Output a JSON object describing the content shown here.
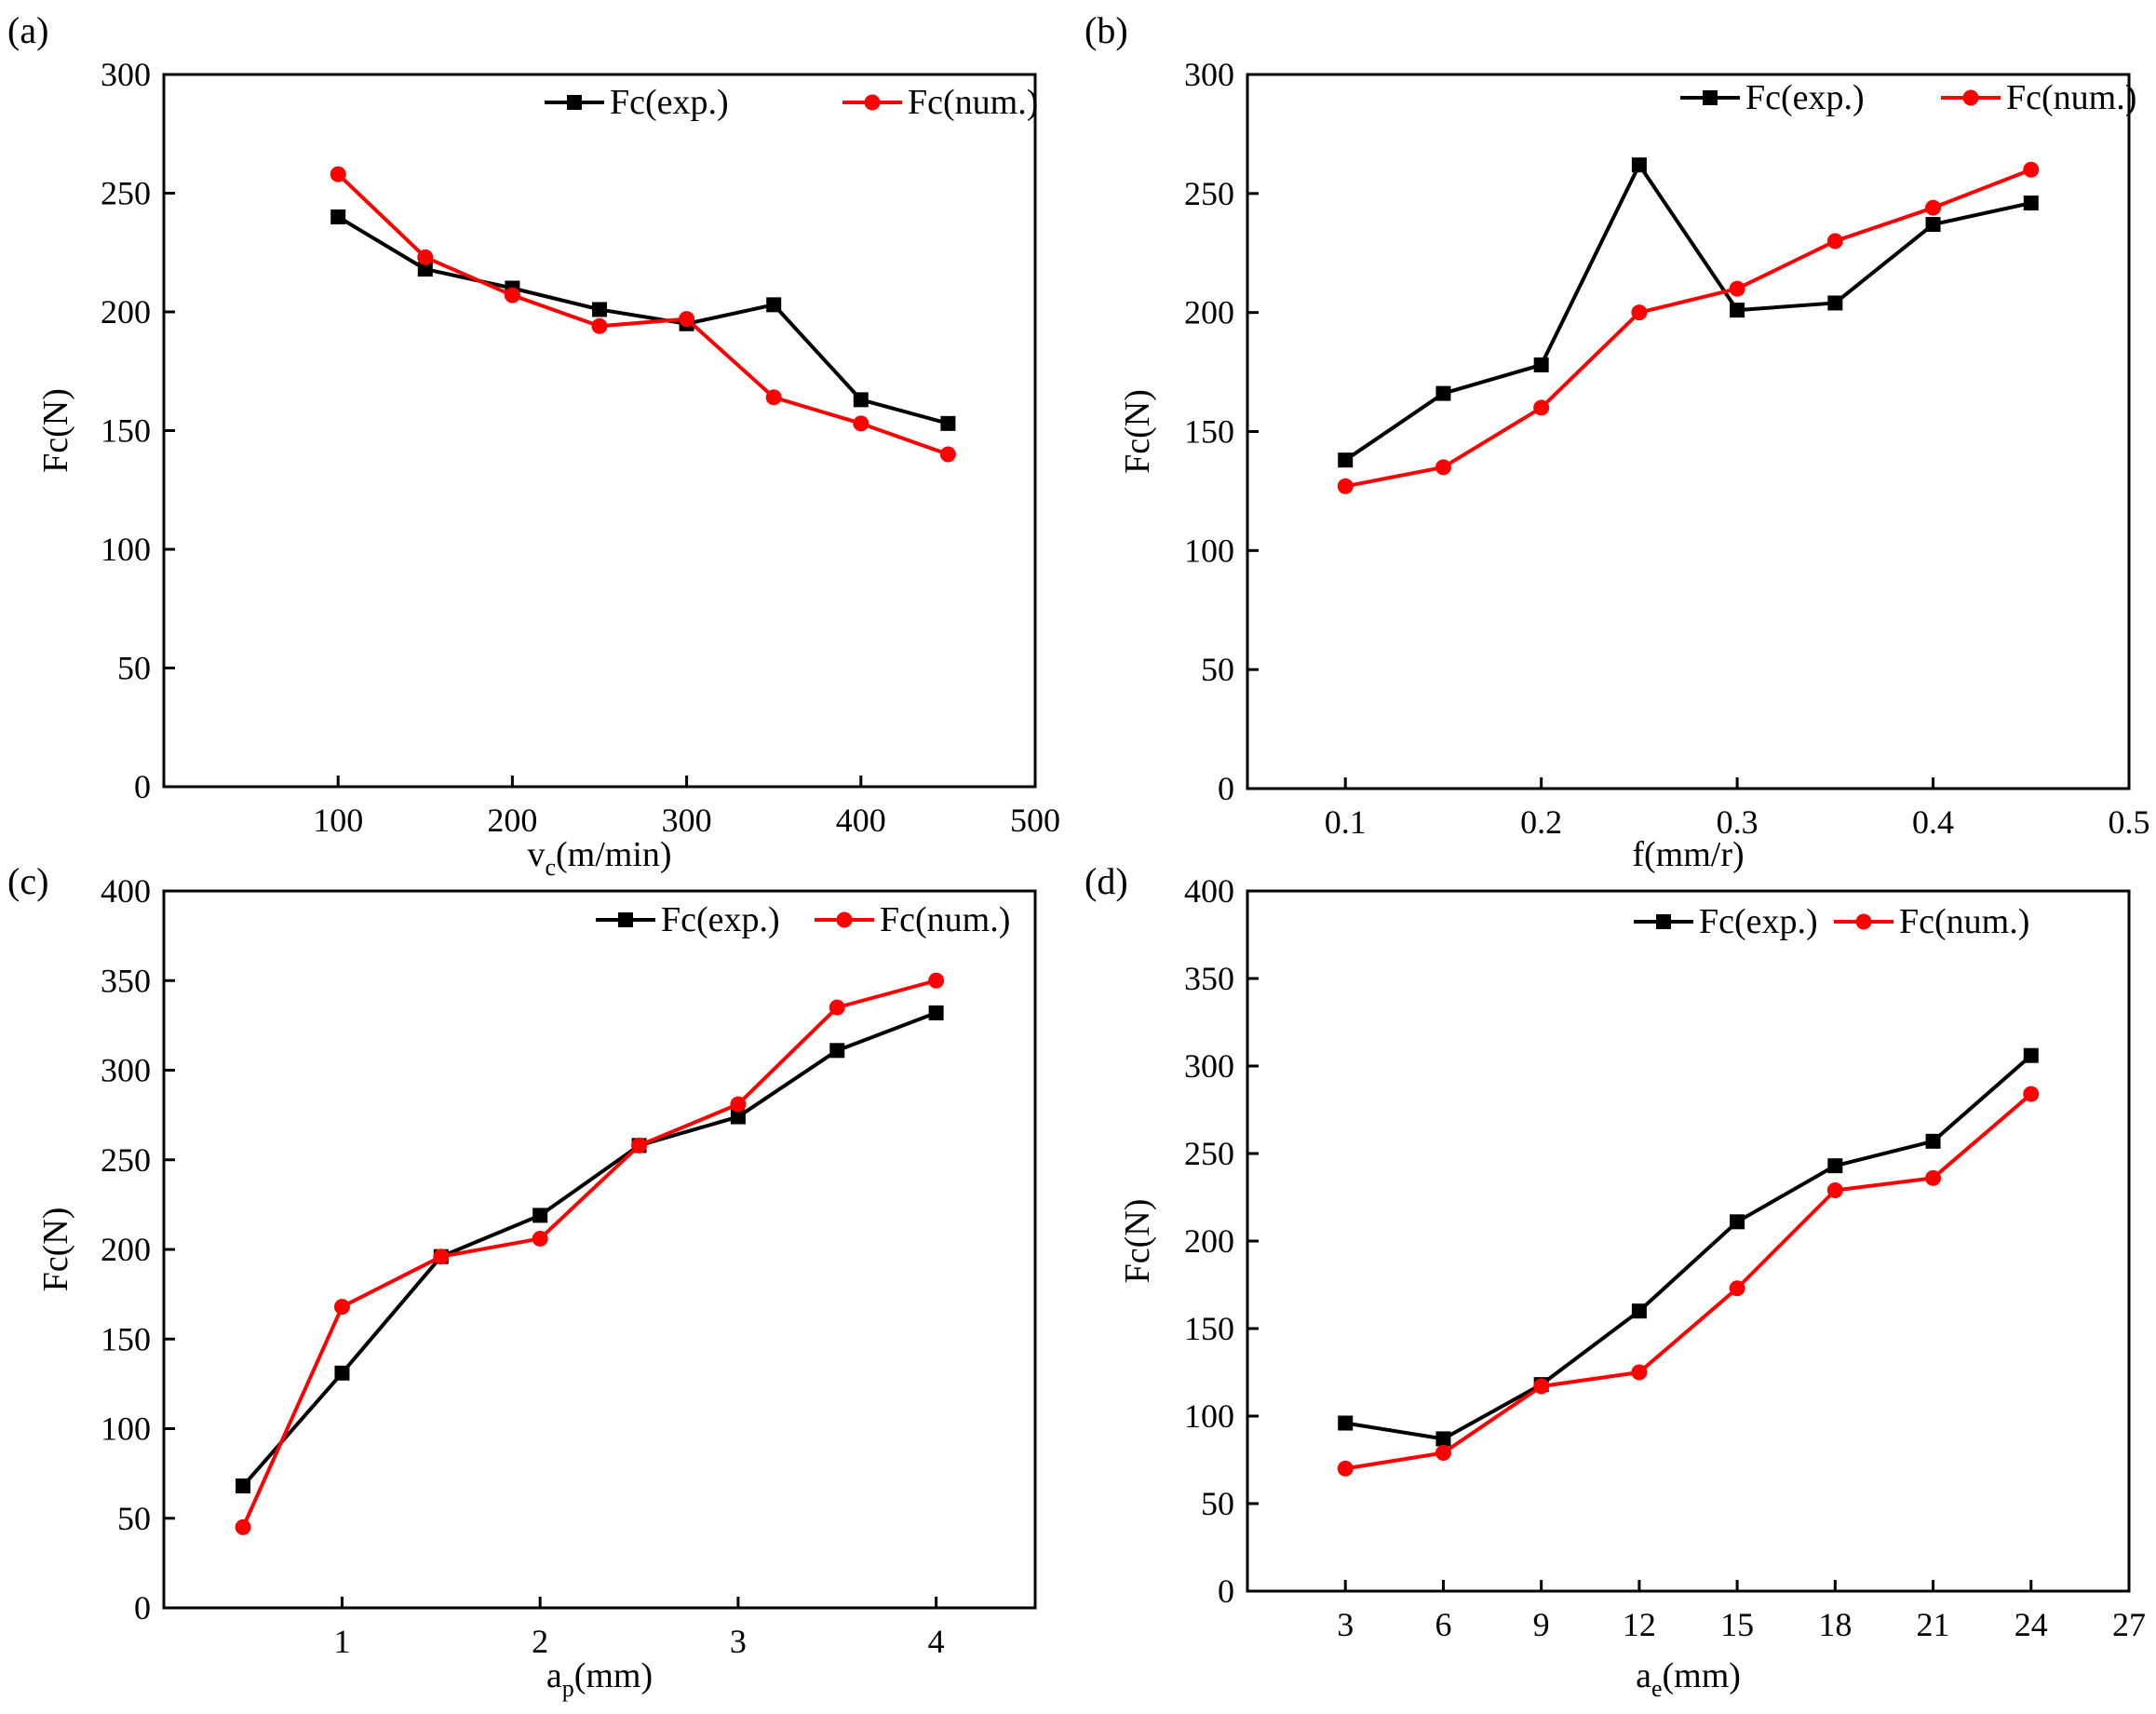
{
  "colors": {
    "exp": "#000000",
    "num": "#ff0000",
    "axis": "#000000"
  },
  "legend": {
    "exp": "Fc(exp.)",
    "num": "Fc(num.)",
    "placement": "top-right"
  },
  "chart_data": [
    {
      "type": "line",
      "panel_label": "(a)",
      "xlabel_main": "v",
      "xlabel_sub": "c",
      "xlabel_tail": "(m/min)",
      "ylabel": "Fc(N)",
      "xlim": [
        0,
        500
      ],
      "ylim": [
        0,
        300
      ],
      "xticks": [
        100,
        200,
        300,
        400,
        500
      ],
      "yticks": [
        0,
        50,
        100,
        150,
        200,
        250,
        300
      ],
      "x": [
        100,
        150,
        200,
        250,
        300,
        350,
        400,
        450
      ],
      "series": [
        {
          "name": "Fc(exp.)",
          "marker": "square",
          "values": [
            240,
            218,
            210,
            201,
            195,
            203,
            163,
            153
          ]
        },
        {
          "name": "Fc(num.)",
          "marker": "circle",
          "values": [
            258,
            223,
            207,
            194,
            197,
            164,
            153,
            140
          ]
        }
      ]
    },
    {
      "type": "line",
      "panel_label": "(b)",
      "xlabel_main": "f(mm/r)",
      "xlabel_sub": "",
      "xlabel_tail": "",
      "ylabel": "Fc(N)",
      "xlim": [
        0.05,
        0.5
      ],
      "ylim": [
        0,
        300
      ],
      "xticks": [
        0.1,
        0.2,
        0.3,
        0.4,
        0.5
      ],
      "yticks": [
        0,
        50,
        100,
        150,
        200,
        250,
        300
      ],
      "x": [
        0.1,
        0.15,
        0.2,
        0.25,
        0.3,
        0.35,
        0.4,
        0.45
      ],
      "series": [
        {
          "name": "Fc(exp.)",
          "marker": "square",
          "values": [
            138,
            166,
            178,
            262,
            201,
            204,
            237,
            246
          ]
        },
        {
          "name": "Fc(num.)",
          "marker": "circle",
          "values": [
            127,
            135,
            160,
            200,
            210,
            230,
            244,
            260
          ]
        }
      ]
    },
    {
      "type": "line",
      "panel_label": "(c)",
      "xlabel_main": "a",
      "xlabel_sub": "p",
      "xlabel_tail": "(mm)",
      "ylabel": "Fc(N)",
      "xlim": [
        0.1,
        4.5
      ],
      "ylim": [
        0,
        400
      ],
      "xticks": [
        1,
        2,
        3,
        4
      ],
      "yticks": [
        0,
        50,
        100,
        150,
        200,
        250,
        300,
        350,
        400
      ],
      "x": [
        0.5,
        1,
        1.5,
        2,
        2.5,
        3,
        3.5,
        4
      ],
      "series": [
        {
          "name": "Fc(exp.)",
          "marker": "square",
          "values": [
            68,
            131,
            196,
            219,
            258,
            274,
            311,
            332
          ]
        },
        {
          "name": "Fc(num.)",
          "marker": "circle",
          "values": [
            45,
            168,
            196,
            206,
            258,
            281,
            335,
            350
          ]
        }
      ]
    },
    {
      "type": "line",
      "panel_label": "(d)",
      "xlabel_main": "a",
      "xlabel_sub": "e",
      "xlabel_tail": "(mm)",
      "ylabel": "Fc(N)",
      "xlim": [
        0,
        27
      ],
      "ylim": [
        0,
        400
      ],
      "xticks": [
        3,
        6,
        9,
        12,
        15,
        18,
        21,
        24,
        27
      ],
      "yticks": [
        0,
        50,
        100,
        150,
        200,
        250,
        300,
        350,
        400
      ],
      "x": [
        3,
        6,
        9,
        12,
        15,
        18,
        21,
        24
      ],
      "series": [
        {
          "name": "Fc(exp.)",
          "marker": "square",
          "values": [
            96,
            87,
            118,
            160,
            211,
            243,
            257,
            306
          ]
        },
        {
          "name": "Fc(num.)",
          "marker": "circle",
          "values": [
            70,
            79,
            117,
            125,
            173,
            229,
            236,
            284
          ]
        }
      ]
    }
  ]
}
